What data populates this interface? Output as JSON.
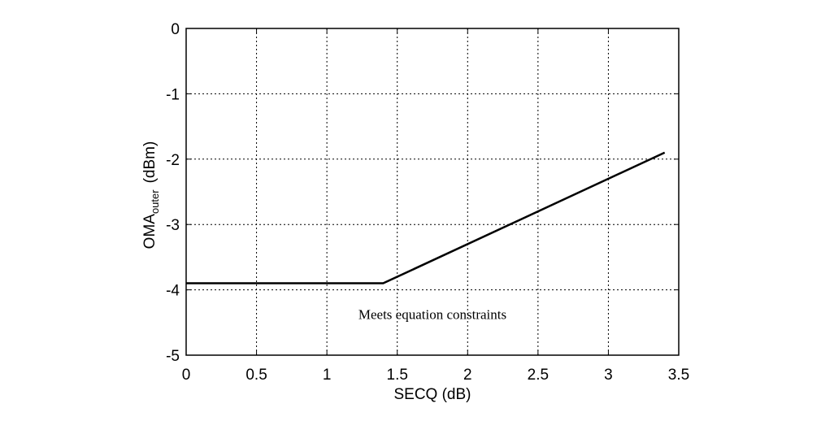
{
  "chart_data": {
    "type": "line",
    "title": "",
    "xlabel": "SECQ (dB)",
    "ylabel": {
      "main": "OMA",
      "subscript": "outer",
      "unit": "(dBm)"
    },
    "xlim": [
      0,
      3.5
    ],
    "ylim": [
      -5,
      0
    ],
    "xticks": [
      0,
      0.5,
      1,
      1.5,
      2,
      2.5,
      3,
      3.5
    ],
    "xtick_labels": [
      "0",
      "0.5",
      "1",
      "1.5",
      "2",
      "2.5",
      "3",
      "3.5"
    ],
    "yticks": [
      0,
      -1,
      -2,
      -3,
      -4,
      -5
    ],
    "ytick_labels": [
      "0",
      "-1",
      "-2",
      "-3",
      "-4",
      "-5"
    ],
    "grid": true,
    "series": [
      {
        "x": [
          0,
          1.4,
          3.4
        ],
        "y": [
          -3.9,
          -3.9,
          -1.9
        ],
        "color": "#000000"
      }
    ],
    "annotations": [
      {
        "text": "Meets equation constraints",
        "x": 1.75,
        "y": -4.37
      }
    ]
  }
}
